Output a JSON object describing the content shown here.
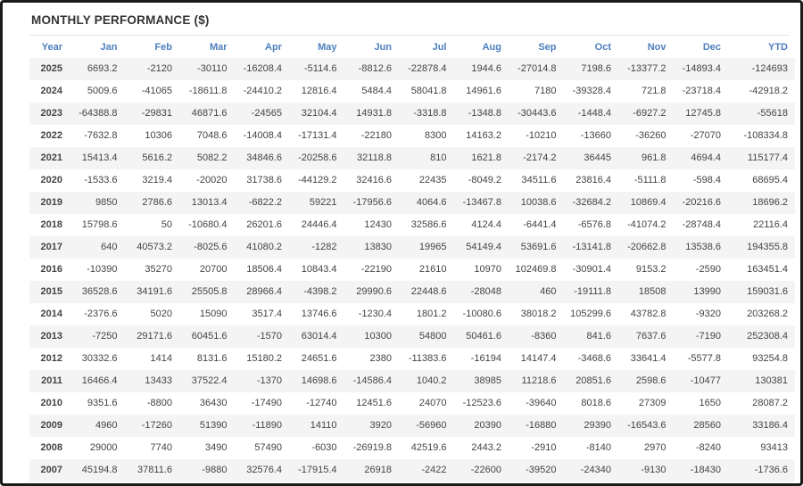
{
  "title": "MONTHLY PERFORMANCE ($)",
  "colors": {
    "header_text": "#4d7fbd",
    "negative_value": "#f0534f",
    "positive_value": "#444444",
    "row_stripe": "#f4f4f4",
    "title_text": "#333333",
    "frame_border": "#1b1b1b"
  },
  "table": {
    "columns": [
      "Year",
      "Jan",
      "Feb",
      "Mar",
      "Apr",
      "May",
      "Jun",
      "Jul",
      "Aug",
      "Sep",
      "Oct",
      "Nov",
      "Dec",
      "YTD"
    ],
    "rows": [
      {
        "year": "2025",
        "values": [
          "6693.2",
          "-2120",
          "-30110",
          "-16208.4",
          "-5114.6",
          "-8812.6",
          "-22878.4",
          "1944.6",
          "-27014.8",
          "7198.6",
          "-13377.2",
          "-14893.4",
          "-124693"
        ]
      },
      {
        "year": "2024",
        "values": [
          "5009.6",
          "-41065",
          "-18611.8",
          "-24410.2",
          "12816.4",
          "5484.4",
          "58041.8",
          "14961.6",
          "7180",
          "-39328.4",
          "721.8",
          "-23718.4",
          "-42918.2"
        ]
      },
      {
        "year": "2023",
        "values": [
          "-64388.8",
          "-29831",
          "46871.6",
          "-24565",
          "32104.4",
          "14931.8",
          "-3318.8",
          "-1348.8",
          "-30443.6",
          "-1448.4",
          "-6927.2",
          "12745.8",
          "-55618"
        ]
      },
      {
        "year": "2022",
        "values": [
          "-7632.8",
          "10306",
          "7048.6",
          "-14008.4",
          "-17131.4",
          "-22180",
          "8300",
          "14163.2",
          "-10210",
          "-13660",
          "-36260",
          "-27070",
          "-108334.8"
        ]
      },
      {
        "year": "2021",
        "values": [
          "15413.4",
          "5616.2",
          "5082.2",
          "34846.6",
          "-20258.6",
          "32118.8",
          "810",
          "1621.8",
          "-2174.2",
          "36445",
          "961.8",
          "4694.4",
          "115177.4"
        ]
      },
      {
        "year": "2020",
        "values": [
          "-1533.6",
          "3219.4",
          "-20020",
          "31738.6",
          "-44129.2",
          "32416.6",
          "22435",
          "-8049.2",
          "34511.6",
          "23816.4",
          "-5111.8",
          "-598.4",
          "68695.4"
        ]
      },
      {
        "year": "2019",
        "values": [
          "9850",
          "2786.6",
          "13013.4",
          "-6822.2",
          "59221",
          "-17956.6",
          "4064.6",
          "-13467.8",
          "10038.6",
          "-32684.2",
          "10869.4",
          "-20216.6",
          "18696.2"
        ]
      },
      {
        "year": "2018",
        "values": [
          "15798.6",
          "50",
          "-10680.4",
          "26201.6",
          "24446.4",
          "12430",
          "32586.6",
          "4124.4",
          "-6441.4",
          "-6576.8",
          "-41074.2",
          "-28748.4",
          "22116.4"
        ]
      },
      {
        "year": "2017",
        "values": [
          "640",
          "40573.2",
          "-8025.6",
          "41080.2",
          "-1282",
          "13830",
          "19965",
          "54149.4",
          "53691.6",
          "-13141.8",
          "-20662.8",
          "13538.6",
          "194355.8"
        ]
      },
      {
        "year": "2016",
        "values": [
          "-10390",
          "35270",
          "20700",
          "18506.4",
          "10843.4",
          "-22190",
          "21610",
          "10970",
          "102469.8",
          "-30901.4",
          "9153.2",
          "-2590",
          "163451.4"
        ]
      },
      {
        "year": "2015",
        "values": [
          "36528.6",
          "34191.6",
          "25505.8",
          "28966.4",
          "-4398.2",
          "29990.6",
          "22448.6",
          "-28048",
          "460",
          "-19111.8",
          "18508",
          "13990",
          "159031.6"
        ]
      },
      {
        "year": "2014",
        "values": [
          "-2376.6",
          "5020",
          "15090",
          "3517.4",
          "13746.6",
          "-1230.4",
          "1801.2",
          "-10080.6",
          "38018.2",
          "105299.6",
          "43782.8",
          "-9320",
          "203268.2"
        ]
      },
      {
        "year": "2013",
        "values": [
          "-7250",
          "29171.6",
          "60451.6",
          "-1570",
          "63014.4",
          "10300",
          "54800",
          "50461.6",
          "-8360",
          "841.6",
          "7637.6",
          "-7190",
          "252308.4"
        ]
      },
      {
        "year": "2012",
        "values": [
          "30332.6",
          "1414",
          "8131.6",
          "15180.2",
          "24651.6",
          "2380",
          "-11383.6",
          "-16194",
          "14147.4",
          "-3468.6",
          "33641.4",
          "-5577.8",
          "93254.8"
        ]
      },
      {
        "year": "2011",
        "values": [
          "16466.4",
          "13433",
          "37522.4",
          "-1370",
          "14698.6",
          "-14586.4",
          "1040.2",
          "38985",
          "11218.6",
          "20851.6",
          "2598.6",
          "-10477",
          "130381"
        ]
      },
      {
        "year": "2010",
        "values": [
          "9351.6",
          "-8800",
          "36430",
          "-17490",
          "-12740",
          "12451.6",
          "24070",
          "-12523.6",
          "-39640",
          "8018.6",
          "27309",
          "1650",
          "28087.2"
        ]
      },
      {
        "year": "2009",
        "values": [
          "4960",
          "-17260",
          "51390",
          "-11890",
          "14110",
          "3920",
          "-56960",
          "20390",
          "-16880",
          "29390",
          "-16543.6",
          "28560",
          "33186.4"
        ]
      },
      {
        "year": "2008",
        "values": [
          "29000",
          "7740",
          "3490",
          "57490",
          "-6030",
          "-26919.8",
          "42519.6",
          "2443.2",
          "-2910",
          "-8140",
          "2970",
          "-8240",
          "93413"
        ]
      },
      {
        "year": "2007",
        "values": [
          "45194.8",
          "37811.6",
          "-9880",
          "32576.4",
          "-17915.4",
          "26918",
          "-2422",
          "-22600",
          "-39520",
          "-24340",
          "-9130",
          "-18430",
          "-1736.6"
        ]
      }
    ]
  }
}
